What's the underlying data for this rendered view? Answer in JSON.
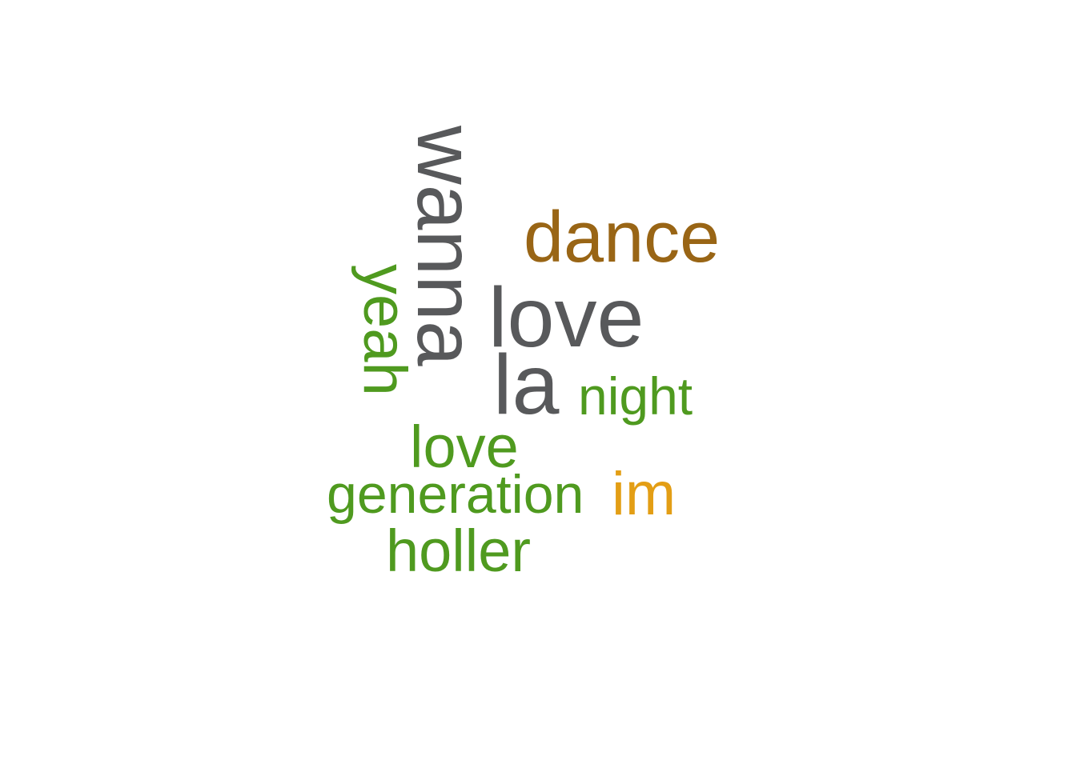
{
  "colors": {
    "dark_gray": "#58595b",
    "brown": "#996515",
    "green": "#4f9a1f",
    "orange": "#e39e15"
  },
  "words": {
    "wanna": "wanna",
    "dance": "dance",
    "love_big": "love",
    "la": "la",
    "yeah": "yeah",
    "night": "night",
    "love_small": "love",
    "generation": "generation",
    "im": "im",
    "holler": "holler"
  }
}
